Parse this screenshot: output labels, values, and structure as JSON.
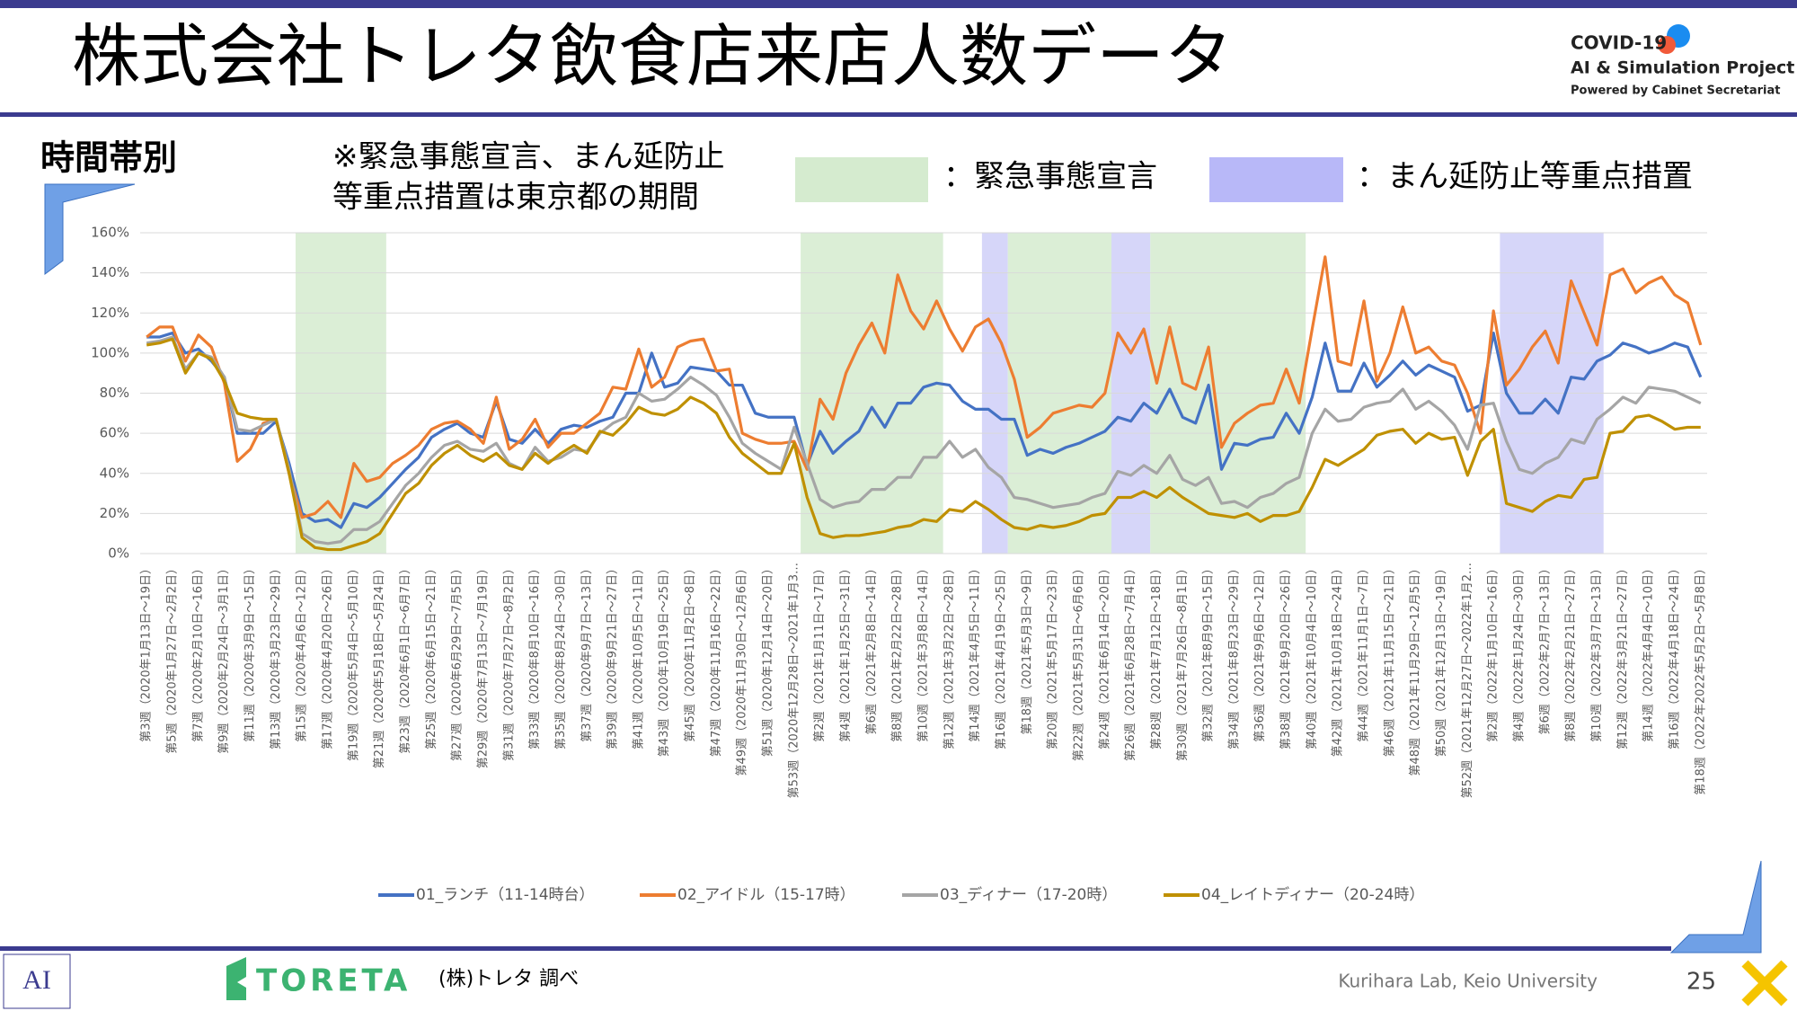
{
  "header": {
    "title": "株式会社トレタ飲食店来店人数データ",
    "logo_line1": "COVID-19",
    "logo_line2": "AI & Simulation Project",
    "logo_line3": "Powered by Cabinet Secretariat"
  },
  "subtitle": "時間帯別",
  "note": [
    "※緊急事態宣言、まん延防止",
    "等重点措置は東京都の期間"
  ],
  "band_legend": [
    {
      "label": "：緊急事態宣言",
      "color": "#d5ebcf"
    },
    {
      "label": "：まん延防止等重点措置",
      "color": "#b8b8f8"
    }
  ],
  "footer": {
    "brand": "TORETA",
    "source": "(株)トレタ 調べ",
    "credit": "Kurihara Lab, Keio University",
    "page": "25",
    "lab_logo": "AI"
  },
  "chart_data": {
    "type": "line",
    "categories": [
      "第3週（2020年1月13日～19日）",
      null,
      "第5週（2020年1月27日～2月2日）",
      null,
      "第7週（2020年2月10日～16日）",
      null,
      "第9週（2020年2月24日～3月1日）",
      null,
      "第11週（2020年3月9日～15日）",
      null,
      "第13週（2020年3月23日～29日）",
      null,
      "第15週（2020年4月6日～12日）",
      null,
      "第17週（2020年4月20日～26日）",
      null,
      "第19週（2020年5月4日～5月10日）",
      null,
      "第21週（2020年5月18日～5月24日）",
      null,
      "第23週（2020年6月1日～6月7日）",
      null,
      "第25週（2020年6月15日～21日）",
      null,
      "第27週（2020年6月29日～7月5日）",
      null,
      "第29週（2020年7月13日～7月19日）",
      null,
      "第31週（2020年7月27日～8月2日）",
      null,
      "第33週（2020年8月10日～16日）",
      null,
      "第35週（2020年8月24日～30日）",
      null,
      "第37週（2020年9月7日～13日）",
      null,
      "第39週（2020年9月21日～27日）",
      null,
      "第41週（2020年10月5日～11日）",
      null,
      "第43週（2020年10月19日～25日）",
      null,
      "第45週（2020年11月2日～8日）",
      null,
      "第47週（2020年11月16日～22日）",
      null,
      "第49週（2020年11月30日～12月6日）",
      null,
      "第51週（2020年12月14日～20日）",
      null,
      "第53週（2020年12月28日～2021年1月3…",
      null,
      "第2週（2021年1月11日～17日）",
      null,
      "第4週（2021年1月25日～31日）",
      null,
      "第6週（2021年2月8日～14日）",
      null,
      "第8週（2021年2月22日～28日）",
      null,
      "第10週（2021年3月8日～14日）",
      null,
      "第12週（2021年3月22日～28日）",
      null,
      "第14週（2021年4月5日～11日）",
      null,
      "第16週（2021年4月19日～25日）",
      null,
      "第18週（2021年5月3日～9日）",
      null,
      "第20週（2021年5月17日～23日）",
      null,
      "第22週（2021年5月31日～6月6日）",
      null,
      "第24週（2021年6月14日～20日）",
      null,
      "第26週（2021年6月28日～7月4日）",
      null,
      "第28週（2021年7月12日～18日）",
      null,
      "第30週（2021年7月26日～8月1日）",
      null,
      "第32週（2021年8月9日～15日）",
      null,
      "第34週（2021年8月23日～29日）",
      null,
      "第36週（2021年9月6日～12日）",
      null,
      "第38週（2021年9月20日～26日）",
      null,
      "第40週（2021年10月4日～10日）",
      null,
      "第42週（2021年10月18日～24日）",
      null,
      "第44週（2021年11月1日～7日）",
      null,
      "第46週（2021年11月15日～21日）",
      null,
      "第48週（2021年11月29日～12月5日）",
      null,
      "第50週（2021年12月13日～19日）",
      null,
      "第52週（2021年12月27日～2022年1月2…",
      null,
      "第2週（2022年1月10日～16日）",
      null,
      "第4週（2022年1月24日～30日）",
      null,
      "第6週（2022年2月7日～13日）",
      null,
      "第8週（2022年2月21日～27日）",
      null,
      "第10週（2022年3月7日～13日）",
      null,
      "第12週（2022年3月21日～27日）",
      null,
      "第14週（2022年4月4日～10日）",
      null,
      "第16週（2022年4月18日～24日）",
      null,
      "第18週（2022年2022年5月2日～5月8日）"
    ],
    "series": [
      {
        "name": "01_ランチ（11-14時台）",
        "color": "#4472c4",
        "values": [
          108,
          108,
          110,
          100,
          102,
          96,
          88,
          60,
          60,
          60,
          66,
          45,
          20,
          16,
          17,
          13,
          25,
          23,
          28,
          35,
          42,
          48,
          58,
          62,
          65,
          60,
          58,
          76,
          57,
          55,
          62,
          55,
          62,
          64,
          63,
          66,
          68,
          80,
          80,
          100,
          83,
          85,
          93,
          92,
          91,
          84,
          84,
          70,
          68,
          68,
          68,
          44,
          61,
          50,
          56,
          61,
          73,
          63,
          75,
          75,
          83,
          85,
          84,
          76,
          72,
          72,
          67,
          67,
          49,
          52,
          50,
          53,
          55,
          58,
          61,
          68,
          66,
          75,
          70,
          82,
          68,
          65,
          84,
          42,
          55,
          54,
          57,
          58,
          70,
          60,
          78,
          105,
          81,
          81,
          95,
          83,
          89,
          96,
          89,
          94,
          91,
          88,
          71,
          74,
          110,
          80,
          70,
          70,
          77,
          70,
          88,
          87,
          96,
          99,
          105,
          103,
          100,
          102,
          105,
          103,
          88
        ]
      },
      {
        "name": "02_アイドル（15-17時）",
        "color": "#ed7d31",
        "values": [
          108,
          113,
          113,
          96,
          109,
          103,
          85,
          46,
          52,
          65,
          67,
          40,
          18,
          20,
          26,
          18,
          45,
          36,
          38,
          45,
          49,
          54,
          62,
          65,
          66,
          62,
          55,
          78,
          52,
          57,
          67,
          53,
          60,
          60,
          65,
          70,
          83,
          82,
          102,
          83,
          88,
          103,
          106,
          107,
          91,
          92,
          60,
          57,
          55,
          55,
          56,
          42,
          77,
          67,
          90,
          104,
          115,
          100,
          139,
          121,
          112,
          126,
          112,
          101,
          113,
          117,
          105,
          87,
          58,
          63,
          70,
          72,
          74,
          73,
          80,
          110,
          100,
          112,
          85,
          113,
          85,
          82,
          103,
          53,
          65,
          70,
          74,
          75,
          92,
          75,
          112,
          148,
          96,
          94,
          126,
          86,
          100,
          123,
          100,
          103,
          96,
          94,
          80,
          60,
          121,
          84,
          92,
          103,
          111,
          95,
          136,
          120,
          104,
          139,
          142,
          130,
          135,
          138,
          129,
          125,
          104
        ]
      },
      {
        "name": "03_ディナー（17-20時）",
        "color": "#a5a5a5",
        "values": [
          105,
          106,
          108,
          92,
          100,
          98,
          88,
          62,
          61,
          64,
          67,
          42,
          10,
          6,
          5,
          6,
          12,
          12,
          16,
          25,
          34,
          40,
          48,
          54,
          56,
          52,
          51,
          55,
          45,
          42,
          53,
          46,
          48,
          52,
          51,
          60,
          65,
          68,
          80,
          76,
          77,
          82,
          88,
          84,
          79,
          68,
          55,
          50,
          46,
          42,
          63,
          45,
          27,
          23,
          25,
          26,
          32,
          32,
          38,
          38,
          48,
          48,
          56,
          48,
          52,
          43,
          38,
          28,
          27,
          25,
          23,
          24,
          25,
          28,
          30,
          41,
          39,
          44,
          40,
          49,
          37,
          34,
          38,
          25,
          26,
          23,
          28,
          30,
          35,
          38,
          60,
          72,
          66,
          67,
          73,
          75,
          76,
          82,
          72,
          76,
          71,
          64,
          52,
          74,
          75,
          56,
          42,
          40,
          45,
          48,
          57,
          55,
          67,
          72,
          78,
          75,
          83,
          82,
          81,
          78,
          75
        ]
      },
      {
        "name": "04_レイトディナー（20-24時）",
        "color": "#bf9000",
        "values": [
          104,
          105,
          107,
          90,
          100,
          97,
          86,
          70,
          68,
          67,
          67,
          40,
          8,
          3,
          2,
          2,
          4,
          6,
          10,
          20,
          30,
          35,
          44,
          50,
          54,
          49,
          46,
          50,
          44,
          42,
          50,
          45,
          50,
          54,
          50,
          61,
          59,
          65,
          73,
          70,
          69,
          72,
          78,
          75,
          70,
          58,
          50,
          45,
          40,
          40,
          55,
          28,
          10,
          8,
          9,
          9,
          10,
          11,
          13,
          14,
          17,
          16,
          22,
          21,
          26,
          22,
          17,
          13,
          12,
          14,
          13,
          14,
          16,
          19,
          20,
          28,
          28,
          31,
          28,
          33,
          28,
          24,
          20,
          19,
          18,
          20,
          16,
          19,
          19,
          21,
          33,
          47,
          44,
          48,
          52,
          59,
          61,
          62,
          55,
          60,
          57,
          58,
          39,
          56,
          62,
          25,
          23,
          21,
          26,
          29,
          28,
          37,
          38,
          60,
          61,
          68,
          69,
          66,
          62,
          63,
          63
        ]
      }
    ],
    "bands": [
      {
        "from": 11.5,
        "to": 18.5,
        "color": "#d5ebcf"
      },
      {
        "from": 50.5,
        "to": 61.5,
        "color": "#d5ebcf"
      },
      {
        "from": 64.5,
        "to": 66.5,
        "color": "#cfcff8"
      },
      {
        "from": 66.5,
        "to": 74.5,
        "color": "#d5ebcf"
      },
      {
        "from": 74.5,
        "to": 77.5,
        "color": "#cfcff8"
      },
      {
        "from": 77.5,
        "to": 89.5,
        "color": "#d5ebcf"
      },
      {
        "from": 104.5,
        "to": 112.5,
        "color": "#cfcff8"
      }
    ],
    "ylim": [
      0,
      160
    ],
    "yticks": [
      {
        "value": 0,
        "label": "0%"
      },
      {
        "value": 20,
        "label": "20%"
      },
      {
        "value": 40,
        "label": "40%"
      },
      {
        "value": 60,
        "label": "60%"
      },
      {
        "value": 80,
        "label": "80%"
      },
      {
        "value": 100,
        "label": "100%"
      },
      {
        "value": 120,
        "label": "120%"
      },
      {
        "value": 140,
        "label": "140%"
      },
      {
        "value": 160,
        "label": "160%"
      }
    ],
    "grid": true,
    "legend": "bottom"
  }
}
